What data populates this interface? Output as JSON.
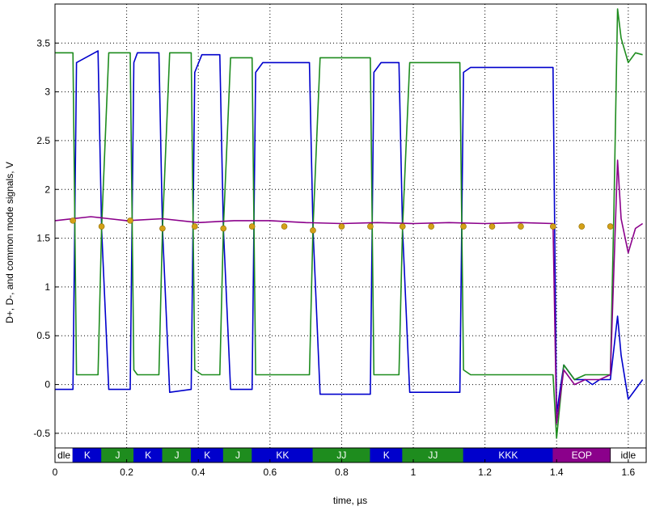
{
  "chart_data": {
    "type": "line",
    "title": "",
    "xlabel": "time, µs",
    "ylabel": "D+, D-, and common mode signals, V",
    "xlim": [
      0,
      1.65
    ],
    "ylim": [
      -0.65,
      3.9
    ],
    "x_ticks": [
      0,
      0.2,
      0.4,
      0.6,
      0.8,
      1.0,
      1.2,
      1.4,
      1.6
    ],
    "x_tick_labels": [
      "0",
      "0.2",
      "0.4",
      "0.6",
      "0.8",
      "1",
      "1.2",
      "1.4",
      "1.6"
    ],
    "y_ticks": [
      -0.5,
      0,
      0.5,
      1,
      1.5,
      2,
      2.5,
      3,
      3.5
    ],
    "y_tick_labels": [
      "-0.5",
      "0",
      "0.5",
      "1",
      "1.5",
      "2",
      "2.5",
      "3",
      "3.5"
    ],
    "grid": true,
    "colors": {
      "d_plus": "#0000cc",
      "d_minus": "#1e8c1e",
      "common_mode": "#8b008b",
      "sample_marker": "#d4a017",
      "k_state": "#0000cc",
      "j_state": "#1e8c1e",
      "eop_state": "#8b008b",
      "idle_state": "#ffffff"
    },
    "series": [
      {
        "key": "d_plus",
        "x": [
          0.0,
          0.05,
          0.06,
          0.12,
          0.13,
          0.15,
          0.21,
          0.22,
          0.23,
          0.29,
          0.3,
          0.32,
          0.38,
          0.39,
          0.41,
          0.46,
          0.47,
          0.49,
          0.55,
          0.56,
          0.58,
          0.71,
          0.72,
          0.74,
          0.88,
          0.89,
          0.91,
          0.96,
          0.97,
          0.99,
          1.13,
          1.14,
          1.16,
          1.39,
          1.4,
          1.42,
          1.45,
          1.48,
          1.5,
          1.52,
          1.55,
          1.57,
          1.58,
          1.6,
          1.62,
          1.64
        ],
        "y": [
          -0.05,
          -0.05,
          3.3,
          3.42,
          1.6,
          -0.05,
          -0.05,
          3.3,
          3.4,
          3.4,
          1.6,
          -0.08,
          -0.05,
          3.2,
          3.38,
          3.38,
          1.6,
          -0.05,
          -0.05,
          3.2,
          3.3,
          3.3,
          1.6,
          -0.1,
          -0.1,
          3.2,
          3.3,
          3.3,
          1.6,
          -0.08,
          -0.08,
          3.2,
          3.25,
          3.25,
          -0.3,
          0.2,
          0.05,
          0.05,
          0.0,
          0.05,
          0.05,
          0.7,
          0.3,
          -0.15,
          -0.05,
          0.05
        ]
      },
      {
        "key": "d_minus",
        "x": [
          0.0,
          0.05,
          0.06,
          0.12,
          0.13,
          0.15,
          0.21,
          0.22,
          0.23,
          0.29,
          0.3,
          0.32,
          0.38,
          0.39,
          0.41,
          0.46,
          0.47,
          0.49,
          0.55,
          0.56,
          0.58,
          0.71,
          0.72,
          0.74,
          0.88,
          0.89,
          0.91,
          0.96,
          0.97,
          0.99,
          1.13,
          1.14,
          1.16,
          1.39,
          1.4,
          1.42,
          1.45,
          1.48,
          1.5,
          1.52,
          1.55,
          1.56,
          1.57,
          1.58,
          1.6,
          1.62,
          1.64
        ],
        "y": [
          3.4,
          3.4,
          0.1,
          0.1,
          1.6,
          3.4,
          3.4,
          0.15,
          0.1,
          0.1,
          1.6,
          3.4,
          3.4,
          0.15,
          0.1,
          0.1,
          1.6,
          3.35,
          3.35,
          0.1,
          0.1,
          0.1,
          1.6,
          3.35,
          3.35,
          0.1,
          0.1,
          0.1,
          1.6,
          3.3,
          3.3,
          0.15,
          0.1,
          0.1,
          -0.55,
          0.2,
          0.05,
          0.1,
          0.1,
          0.1,
          0.1,
          1.8,
          3.85,
          3.55,
          3.3,
          3.4,
          3.38
        ]
      },
      {
        "key": "common_mode",
        "x": [
          0.0,
          0.1,
          0.2,
          0.3,
          0.4,
          0.5,
          0.6,
          0.7,
          0.8,
          0.9,
          1.0,
          1.1,
          1.2,
          1.3,
          1.39,
          1.4,
          1.42,
          1.45,
          1.48,
          1.52,
          1.55,
          1.57,
          1.58,
          1.6,
          1.62,
          1.64
        ],
        "y": [
          1.68,
          1.72,
          1.68,
          1.7,
          1.66,
          1.68,
          1.68,
          1.66,
          1.65,
          1.66,
          1.65,
          1.66,
          1.65,
          1.66,
          1.65,
          -0.4,
          0.15,
          0.0,
          0.05,
          0.05,
          0.1,
          2.3,
          1.7,
          1.35,
          1.6,
          1.65
        ]
      }
    ],
    "sample_points": [
      [
        0.05,
        1.68
      ],
      [
        0.13,
        1.62
      ],
      [
        0.21,
        1.68
      ],
      [
        0.3,
        1.6
      ],
      [
        0.39,
        1.62
      ],
      [
        0.47,
        1.6
      ],
      [
        0.55,
        1.62
      ],
      [
        0.64,
        1.62
      ],
      [
        0.72,
        1.58
      ],
      [
        0.8,
        1.62
      ],
      [
        0.88,
        1.62
      ],
      [
        0.97,
        1.62
      ],
      [
        1.05,
        1.62
      ],
      [
        1.14,
        1.62
      ],
      [
        1.22,
        1.62
      ],
      [
        1.3,
        1.62
      ],
      [
        1.39,
        1.62
      ],
      [
        1.47,
        1.62
      ],
      [
        1.55,
        1.62
      ]
    ],
    "state_segments": [
      {
        "label": "dle",
        "start": 0.0,
        "end": 0.05,
        "kind": "idle"
      },
      {
        "label": "K",
        "start": 0.05,
        "end": 0.13,
        "kind": "k"
      },
      {
        "label": "J",
        "start": 0.13,
        "end": 0.22,
        "kind": "j"
      },
      {
        "label": "K",
        "start": 0.22,
        "end": 0.3,
        "kind": "k"
      },
      {
        "label": "J",
        "start": 0.3,
        "end": 0.38,
        "kind": "j"
      },
      {
        "label": "K",
        "start": 0.38,
        "end": 0.47,
        "kind": "k"
      },
      {
        "label": "J",
        "start": 0.47,
        "end": 0.55,
        "kind": "j"
      },
      {
        "label": "KK",
        "start": 0.55,
        "end": 0.72,
        "kind": "k"
      },
      {
        "label": "JJ",
        "start": 0.72,
        "end": 0.88,
        "kind": "j"
      },
      {
        "label": "K",
        "start": 0.88,
        "end": 0.97,
        "kind": "k"
      },
      {
        "label": "JJ",
        "start": 0.97,
        "end": 1.14,
        "kind": "j"
      },
      {
        "label": "KKK",
        "start": 1.14,
        "end": 1.39,
        "kind": "k"
      },
      {
        "label": "EOP",
        "start": 1.39,
        "end": 1.55,
        "kind": "eop"
      },
      {
        "label": "idle",
        "start": 1.55,
        "end": 1.65,
        "kind": "idle"
      }
    ]
  }
}
